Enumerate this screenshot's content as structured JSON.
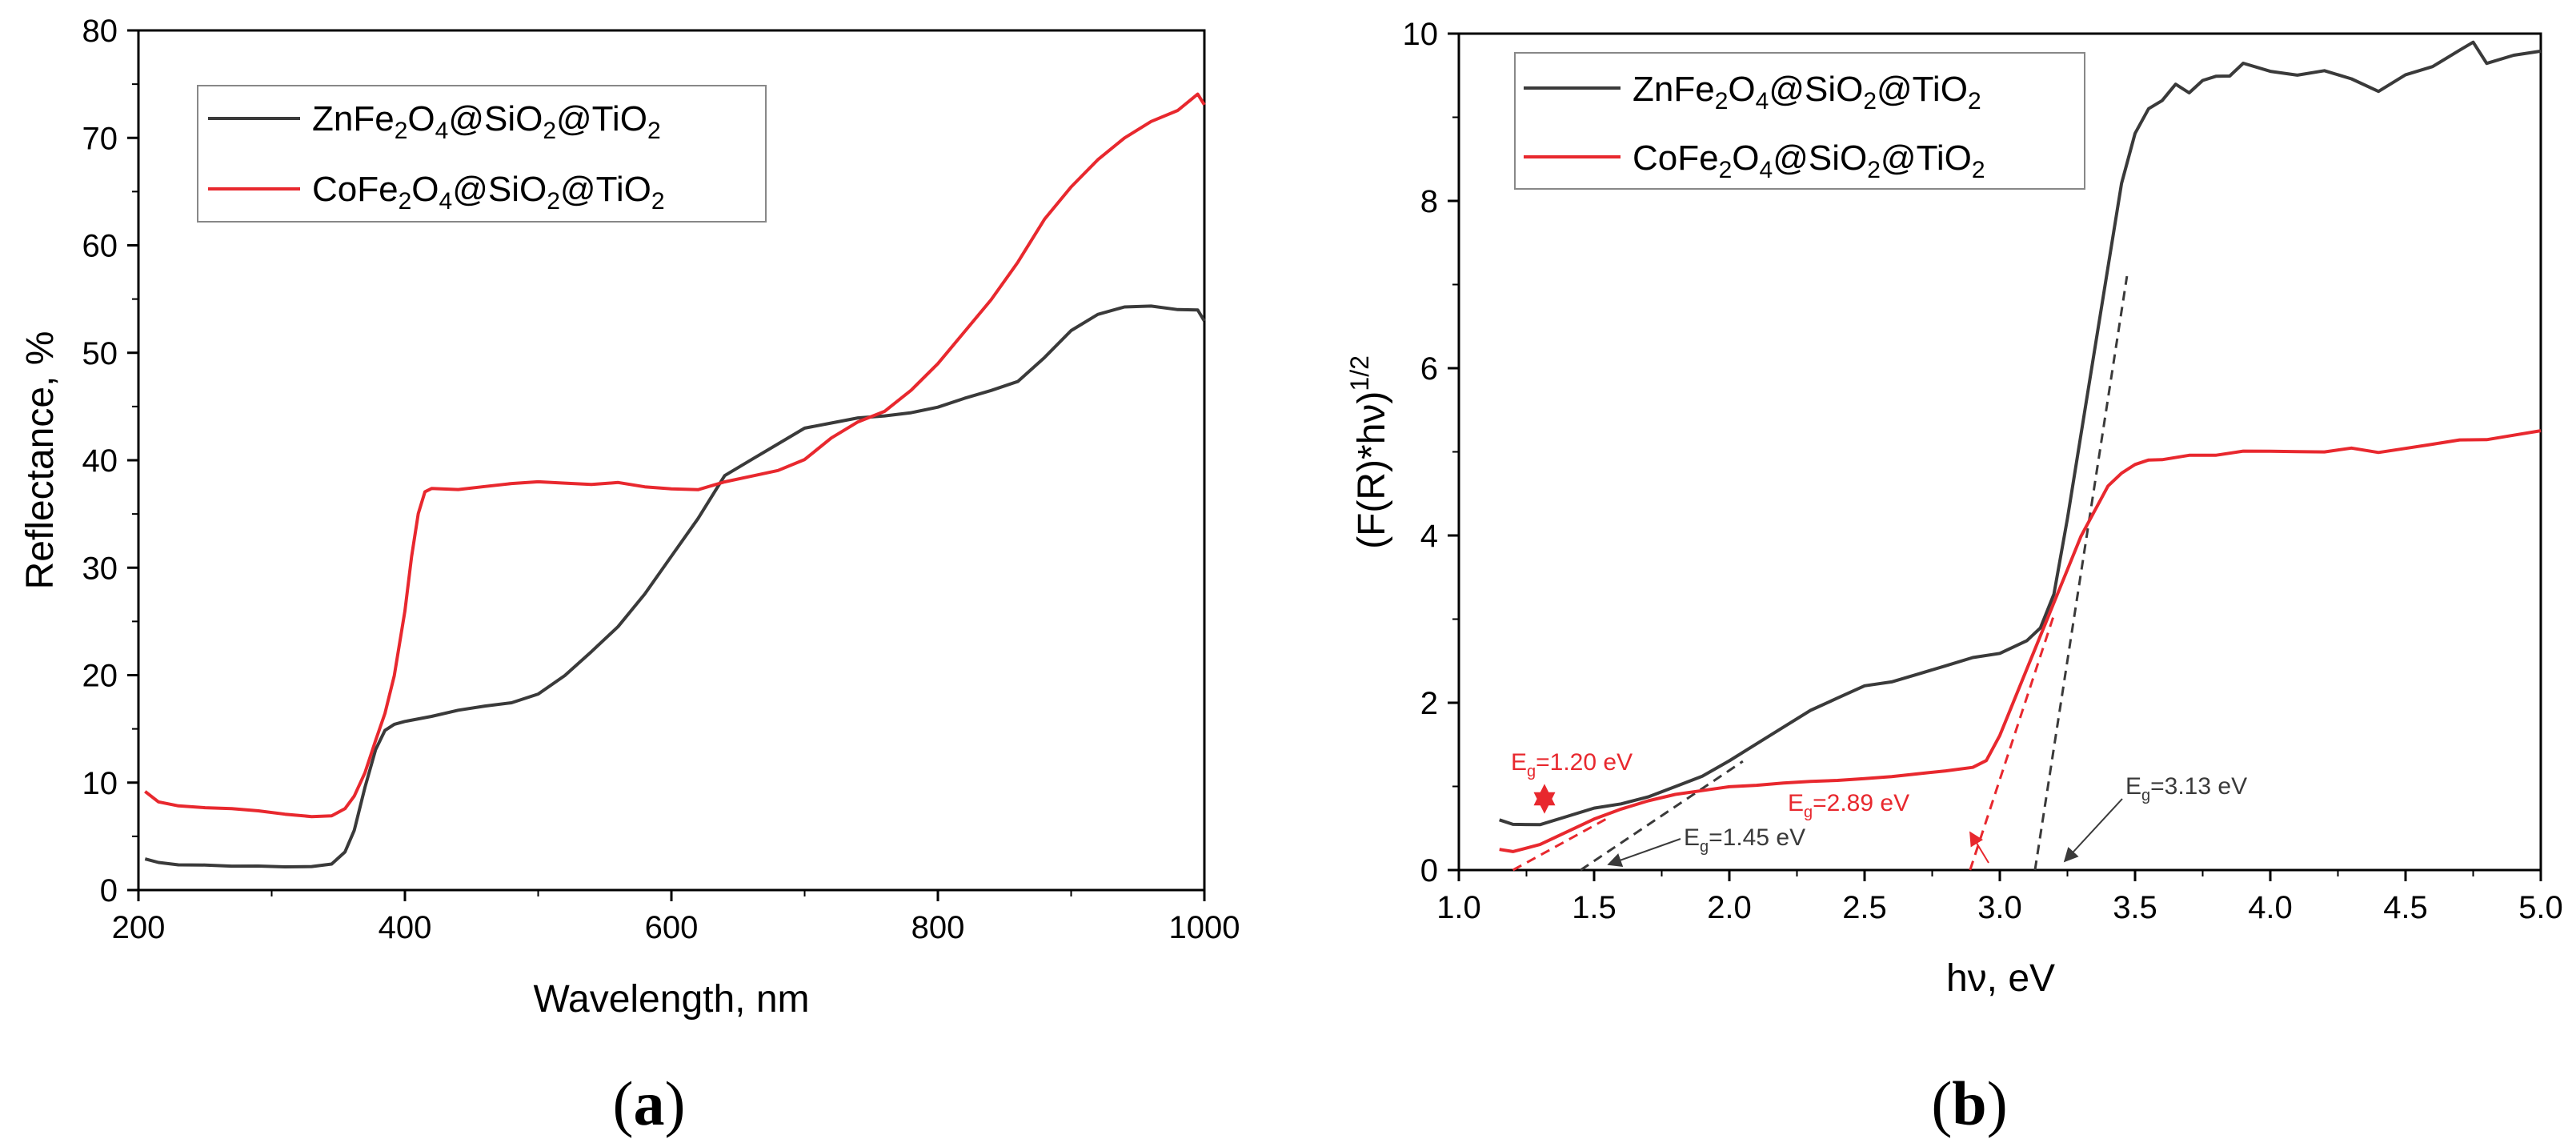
{
  "panels": {
    "a": {
      "label_open": "(",
      "label_letter": "a",
      "label_close": ")"
    },
    "b": {
      "label_open": "(",
      "label_letter": "b",
      "label_close": ")"
    }
  },
  "colors": {
    "zn": "#3a3a3a",
    "co": "#e8282e",
    "axis": "#000000"
  },
  "chart_data": [
    {
      "type": "line",
      "panel": "a",
      "xlabel": "Wavelength, nm",
      "ylabel": "Reflectance, %",
      "xlim": [
        200,
        1000
      ],
      "ylim": [
        0,
        80
      ],
      "xticks": [
        200,
        400,
        600,
        800,
        1000
      ],
      "yticks": [
        0,
        10,
        20,
        30,
        40,
        50,
        60,
        70,
        80
      ],
      "legend_position": "top-left",
      "series": [
        {
          "name": "ZnFe2O4@SiO2@TiO2",
          "legend": {
            "p1": "ZnFe",
            "s1": "2",
            "p2": "O",
            "s2": "4",
            "p3": "@SiO",
            "s3": "2",
            "p4": "@TiO",
            "s4": "2"
          },
          "color": "#3a3a3a",
          "x": [
            205,
            215,
            230,
            250,
            270,
            290,
            310,
            330,
            345,
            355,
            362,
            370,
            378,
            385,
            392,
            400,
            420,
            440,
            460,
            480,
            500,
            520,
            540,
            560,
            580,
            600,
            620,
            640,
            660,
            680,
            700,
            720,
            740,
            760,
            780,
            800,
            820,
            840,
            860,
            880,
            900,
            920,
            940,
            960,
            980,
            995,
            1000
          ],
          "y": [
            2.9,
            2.6,
            2.4,
            2.4,
            2.3,
            2.3,
            2.2,
            2.2,
            2.4,
            3.5,
            5.5,
            9.5,
            13.0,
            14.8,
            15.4,
            15.7,
            16.2,
            16.8,
            17.2,
            17.5,
            18.3,
            20.0,
            22.2,
            24.5,
            27.5,
            31.0,
            34.5,
            38.5,
            40.0,
            41.5,
            43.0,
            43.5,
            44.0,
            44.2,
            44.5,
            45.0,
            45.8,
            46.5,
            47.3,
            49.5,
            52.0,
            53.5,
            54.2,
            54.3,
            54.0,
            54.0,
            53.0
          ]
        },
        {
          "name": "CoFe2O4@SiO2@TiO2",
          "legend": {
            "p1": "CoFe",
            "s1": "2",
            "p2": "O",
            "s2": "4",
            "p3": "@SiO",
            "s3": "2",
            "p4": "@TiO",
            "s4": "2"
          },
          "color": "#e8282e",
          "x": [
            205,
            215,
            230,
            250,
            270,
            290,
            310,
            330,
            345,
            355,
            362,
            370,
            378,
            385,
            392,
            400,
            405,
            410,
            415,
            420,
            440,
            460,
            480,
            500,
            520,
            540,
            560,
            580,
            600,
            620,
            640,
            660,
            680,
            700,
            720,
            740,
            760,
            780,
            800,
            820,
            840,
            860,
            880,
            900,
            920,
            940,
            960,
            980,
            995,
            1000
          ],
          "y": [
            9.2,
            8.2,
            7.8,
            7.6,
            7.5,
            7.3,
            7.0,
            6.8,
            6.9,
            7.6,
            8.8,
            11.0,
            14.0,
            16.5,
            20.0,
            26.0,
            31.0,
            35.0,
            37.0,
            37.3,
            37.2,
            37.5,
            37.8,
            38.0,
            37.9,
            37.8,
            38.0,
            37.6,
            37.4,
            37.3,
            38.0,
            38.5,
            39.0,
            40.0,
            42.0,
            43.5,
            44.5,
            46.5,
            49.0,
            52.0,
            55.0,
            58.5,
            62.5,
            65.5,
            68.0,
            70.0,
            71.5,
            72.5,
            74.0,
            73.0
          ]
        }
      ]
    },
    {
      "type": "line",
      "panel": "b",
      "xlabel": "hν, eV",
      "ylabel": {
        "base": "(F(R)*hν)",
        "sup": "1/2"
      },
      "xlim": [
        1.0,
        5.0
      ],
      "ylim": [
        0,
        10
      ],
      "xticks": [
        "1.0",
        "1.5",
        "2.0",
        "2.5",
        "3.0",
        "3.5",
        "4.0",
        "4.5",
        "5.0"
      ],
      "yticks": [
        0,
        2,
        4,
        6,
        8,
        10
      ],
      "legend_position": "top-left",
      "series": [
        {
          "name": "ZnFe2O4@SiO2@TiO2",
          "legend": {
            "p1": "ZnFe",
            "s1": "2",
            "p2": "O",
            "s2": "4",
            "p3": "@SiO",
            "s3": "2",
            "p4": "@TiO",
            "s4": "2"
          },
          "color": "#3a3a3a",
          "x": [
            1.15,
            1.2,
            1.3,
            1.4,
            1.5,
            1.6,
            1.7,
            1.8,
            1.9,
            2.0,
            2.1,
            2.2,
            2.3,
            2.4,
            2.5,
            2.6,
            2.7,
            2.8,
            2.9,
            3.0,
            3.1,
            3.15,
            3.2,
            3.25,
            3.3,
            3.35,
            3.4,
            3.45,
            3.5,
            3.55,
            3.6,
            3.65,
            3.7,
            3.75,
            3.8,
            3.85,
            3.9,
            4.0,
            4.1,
            4.2,
            4.3,
            4.4,
            4.5,
            4.6,
            4.7,
            4.75,
            4.8,
            4.9,
            5.0
          ],
          "y": [
            0.6,
            0.55,
            0.55,
            0.65,
            0.75,
            0.8,
            0.88,
            1.0,
            1.12,
            1.3,
            1.5,
            1.7,
            1.9,
            2.05,
            2.2,
            2.25,
            2.35,
            2.45,
            2.55,
            2.6,
            2.75,
            2.9,
            3.3,
            4.2,
            5.2,
            6.2,
            7.2,
            8.2,
            8.8,
            9.1,
            9.2,
            9.4,
            9.3,
            9.45,
            9.5,
            9.5,
            9.65,
            9.55,
            9.5,
            9.55,
            9.45,
            9.3,
            9.5,
            9.6,
            9.8,
            9.9,
            9.65,
            9.75,
            9.8
          ]
        },
        {
          "name": "CoFe2O4@SiO2@TiO2",
          "legend": {
            "p1": "CoFe",
            "s1": "2",
            "p2": "O",
            "s2": "4",
            "p3": "@SiO",
            "s3": "2",
            "p4": "@TiO",
            "s4": "2"
          },
          "color": "#e8282e",
          "x": [
            1.15,
            1.2,
            1.3,
            1.4,
            1.5,
            1.6,
            1.7,
            1.8,
            1.9,
            2.0,
            2.1,
            2.2,
            2.3,
            2.4,
            2.5,
            2.6,
            2.7,
            2.8,
            2.9,
            2.95,
            3.0,
            3.05,
            3.1,
            3.15,
            3.2,
            3.25,
            3.3,
            3.35,
            3.4,
            3.45,
            3.5,
            3.55,
            3.6,
            3.7,
            3.8,
            3.9,
            4.0,
            4.1,
            4.2,
            4.3,
            4.4,
            4.5,
            4.6,
            4.7,
            4.8,
            4.9,
            5.0
          ],
          "y": [
            0.25,
            0.22,
            0.3,
            0.45,
            0.6,
            0.72,
            0.82,
            0.9,
            0.95,
            1.0,
            1.02,
            1.05,
            1.07,
            1.08,
            1.1,
            1.12,
            1.15,
            1.18,
            1.22,
            1.3,
            1.6,
            2.0,
            2.4,
            2.8,
            3.2,
            3.6,
            4.0,
            4.3,
            4.6,
            4.75,
            4.85,
            4.9,
            4.9,
            4.95,
            4.95,
            5.0,
            5.0,
            5.0,
            5.0,
            5.05,
            5.0,
            5.05,
            5.1,
            5.15,
            5.15,
            5.2,
            5.25
          ]
        }
      ],
      "annotations": [
        {
          "color": "#e8282e",
          "pre": "E",
          "sub": "g",
          "post": "=1.20 eV",
          "value": 1.2
        },
        {
          "color": "#3a3a3a",
          "pre": "E",
          "sub": "g",
          "post": "=1.45 eV",
          "value": 1.45
        },
        {
          "color": "#e8282e",
          "pre": "E",
          "sub": "g",
          "post": "=2.89 eV",
          "value": 2.89
        },
        {
          "color": "#3a3a3a",
          "pre": "E",
          "sub": "g",
          "post": "=3.13 eV",
          "value": 3.13
        }
      ]
    }
  ]
}
